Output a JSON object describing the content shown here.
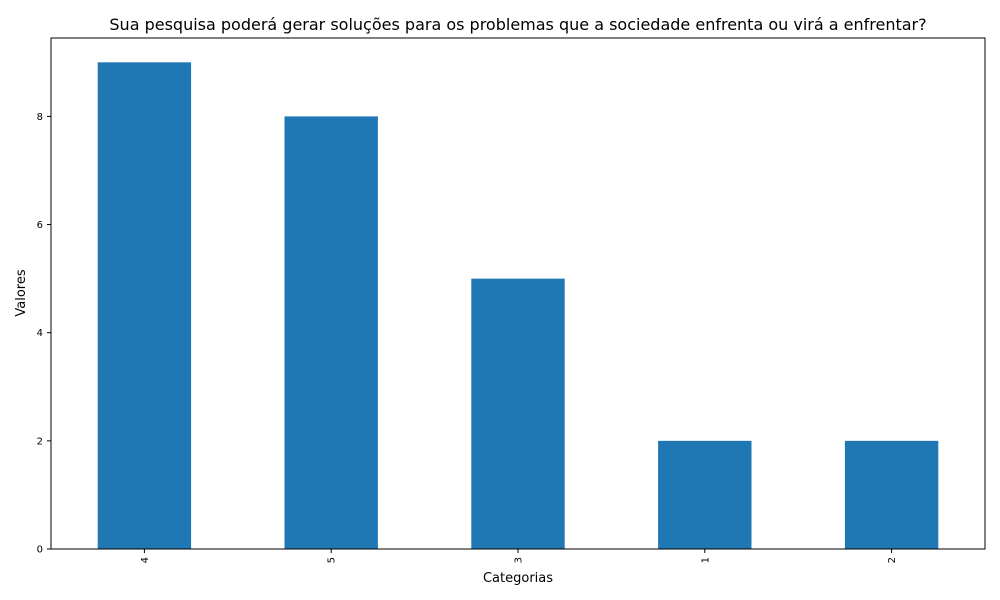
{
  "chart_data": {
    "type": "bar",
    "title": "Sua pesquisa poderá gerar soluções para os problemas que a sociedade enfrenta ou virá a enfrentar?",
    "xlabel": "Categorias",
    "ylabel": "Valores",
    "categories": [
      "4",
      "5",
      "3",
      "1",
      "2"
    ],
    "values": [
      9,
      8,
      5,
      2,
      2
    ],
    "ylim": [
      0,
      9.45
    ],
    "yticks": [
      "0",
      "2",
      "4",
      "6",
      "8"
    ],
    "bar_color": "#1f77b4",
    "grid": false,
    "legend": "none"
  }
}
